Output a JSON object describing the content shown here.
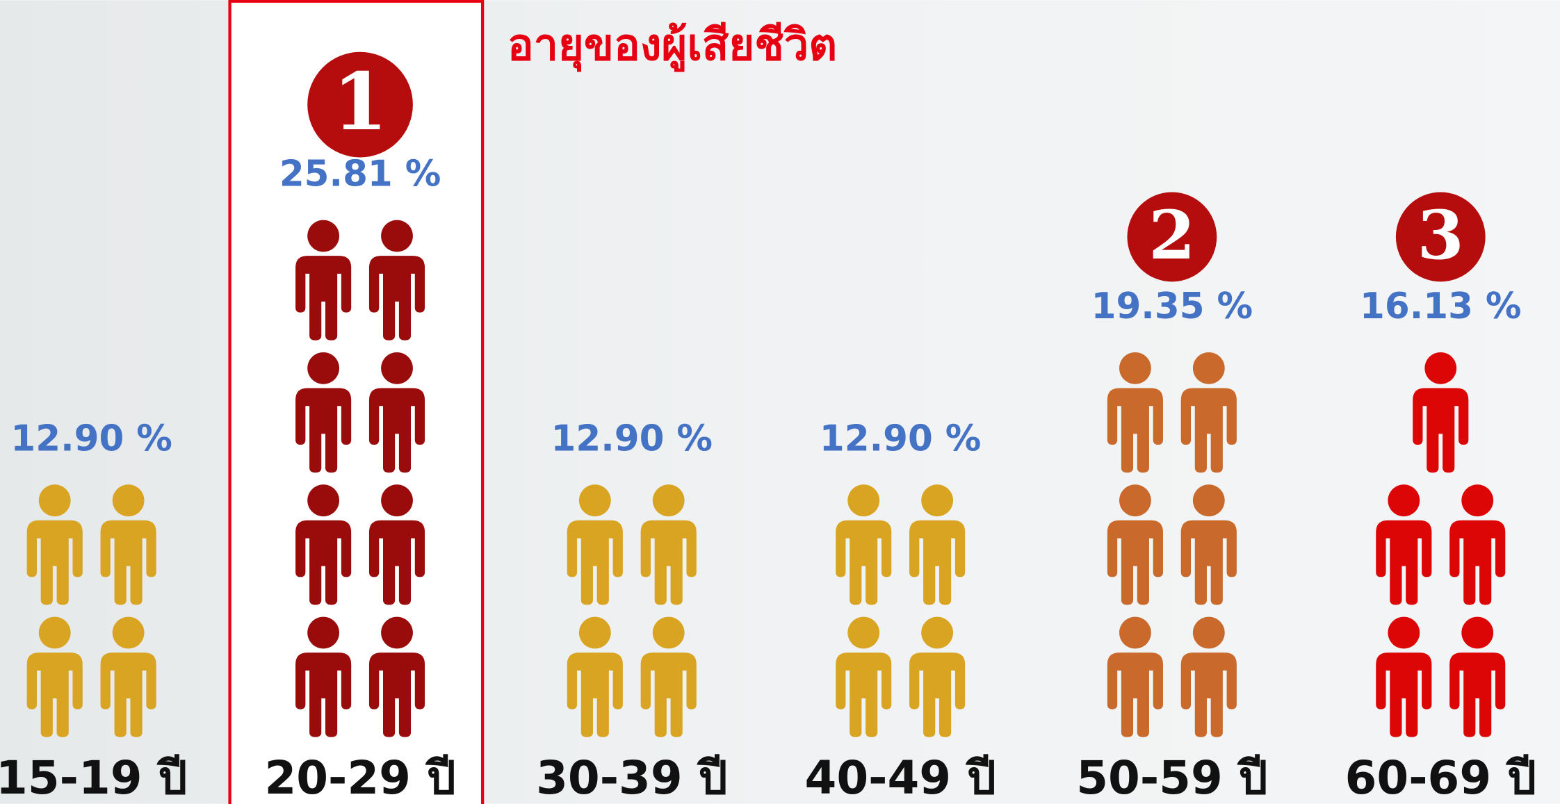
{
  "chart_data": {
    "type": "pictogram",
    "title": "อายุของผู้เสียชีวิต",
    "categories": [
      "15-19 ปี",
      "20-29 ปี",
      "30-39 ปี",
      "40-49 ปี",
      "50-59 ปี",
      "60-69 ปี"
    ],
    "values": [
      12.9,
      25.81,
      12.9,
      12.9,
      19.35,
      16.13
    ],
    "value_labels": [
      "12.90 %",
      "25.81 %",
      "12.90  %",
      "12.90  %",
      "19.35  %",
      "16.13  %"
    ],
    "counts": [
      4,
      8,
      4,
      4,
      6,
      5
    ],
    "ranks": [
      null,
      1,
      null,
      null,
      2,
      3
    ],
    "colors": [
      "#d9a422",
      "#9a0c0c",
      "#d9a422",
      "#d9a422",
      "#c9692b",
      "#dd0606"
    ],
    "highlight": 1
  }
}
